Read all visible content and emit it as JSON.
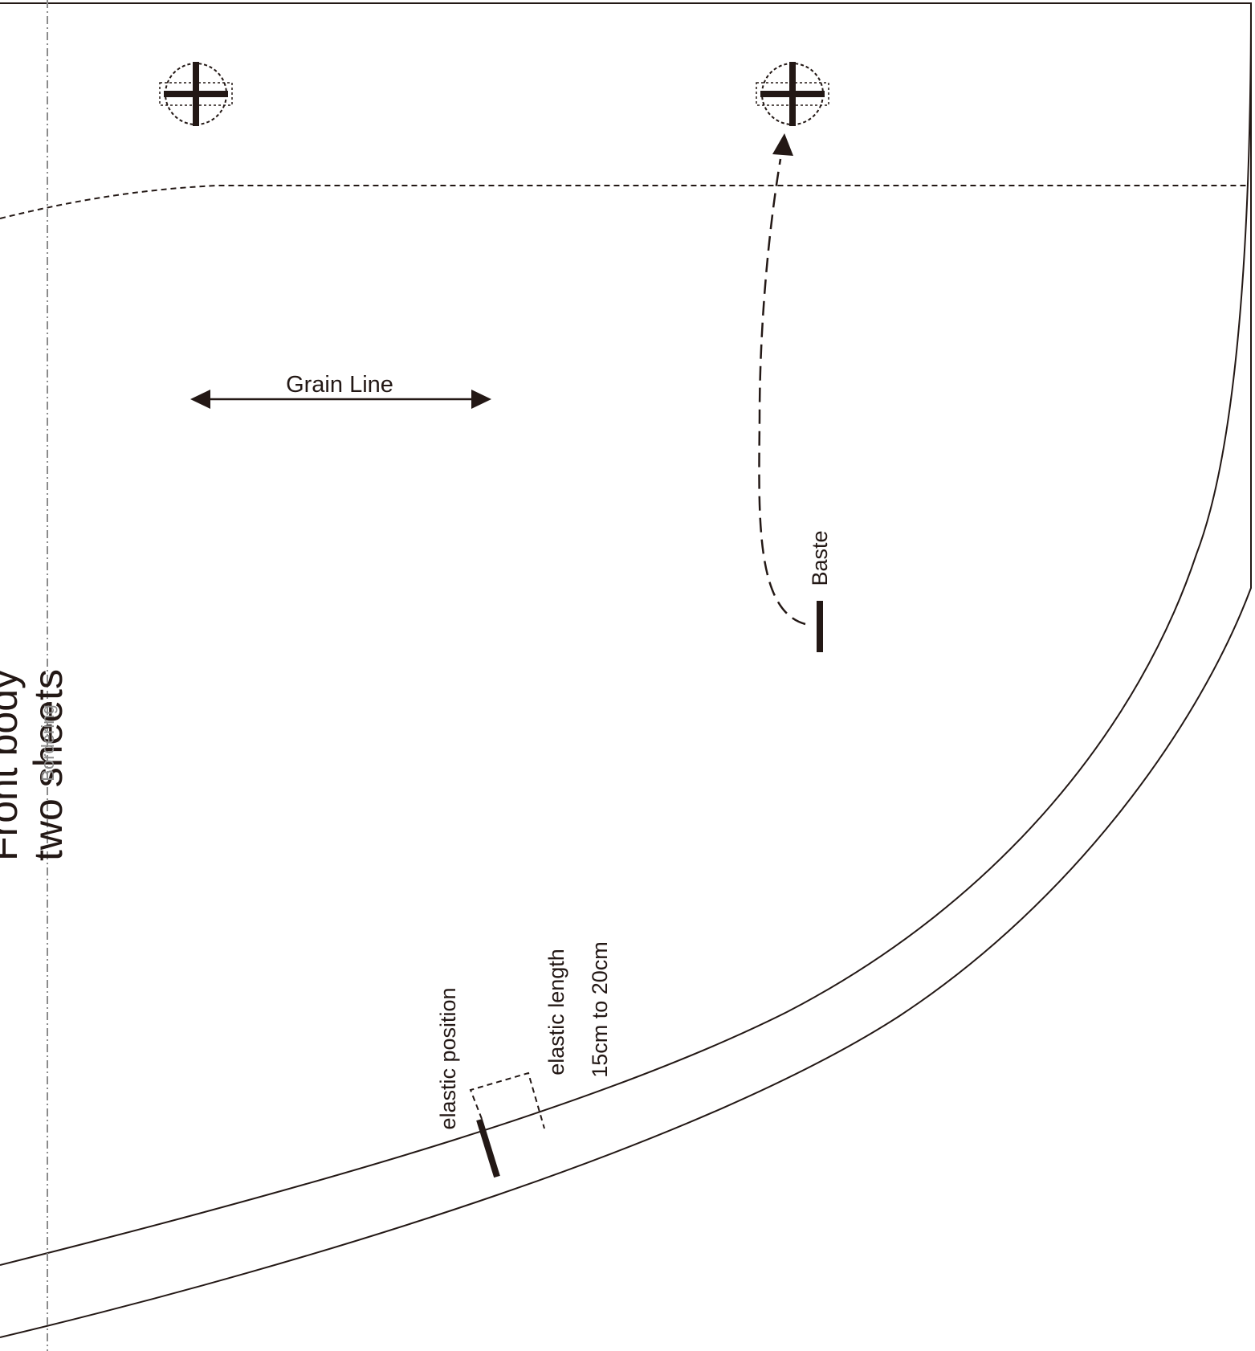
{
  "pattern": {
    "piece_title": "Front body",
    "piece_quantity": "two sheets",
    "fold_label": "Bordering",
    "grain_label": "Grain Line",
    "baste_label": "Baste",
    "elastic_position_label": "elastic position",
    "elastic_length_label": "elastic length",
    "elastic_length_value": "15cm to 20cm"
  },
  "colors": {
    "line": "#231815",
    "fold_line": "#8c8c8c"
  },
  "icons": [
    "registration-mark-icon",
    "grain-arrow-icon",
    "baste-arrow-icon"
  ]
}
